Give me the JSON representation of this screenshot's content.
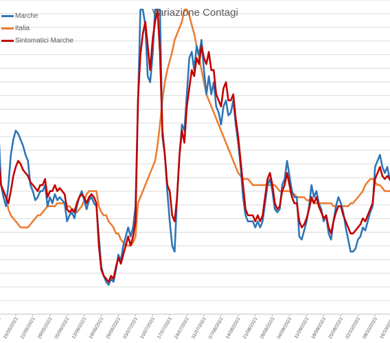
{
  "chart_data": {
    "type": "line",
    "title": "Variazione Contagi",
    "xlabel": "",
    "ylabel": "",
    "grid": true,
    "legend_position": "top-left",
    "x_tick_labels": [
      "08/05/2021",
      "15/05/2021",
      "22/05/2021",
      "29/05/2021",
      "05/06/2021",
      "12/06/2021",
      "19/06/2021",
      "26/06/2021",
      "03/07/2021",
      "10/07/2021",
      "17/07/2021",
      "24/07/2021",
      "31/07/2021",
      "07/08/2021",
      "14/08/2021",
      "21/08/2021",
      "28/08/2021",
      "04/09/2021",
      "11/09/2021",
      "18/09/2021",
      "25/09/2021",
      "02/10/2021",
      "09/10/2021",
      "16/10/2021"
    ],
    "x_start": "2021-05-08",
    "ylim": [
      0,
      100
    ],
    "series": [
      {
        "name": "Marche",
        "color": "#2E75B6",
        "values": [
          60,
          42,
          38,
          35,
          42,
          52,
          57,
          60,
          59,
          57,
          55,
          52,
          50,
          42,
          40,
          37,
          38,
          40,
          40,
          42,
          35,
          38,
          36,
          39,
          37,
          38,
          37,
          36,
          30,
          32,
          33,
          31,
          35,
          38,
          40,
          37,
          34,
          37,
          38,
          36,
          35,
          25,
          15,
          12,
          10,
          9,
          11,
          10,
          14,
          19,
          17,
          22,
          25,
          28,
          25,
          28,
          35,
          68,
          100,
          100,
          95,
          78,
          76,
          85,
          100,
          100,
          100,
          58,
          52,
          40,
          30,
          22,
          20,
          38,
          52,
          62,
          60,
          72,
          84,
          86,
          80,
          88,
          85,
          90,
          80,
          72,
          78,
          72,
          76,
          68,
          66,
          62,
          68,
          70,
          65,
          66,
          70,
          62,
          56,
          48,
          38,
          32,
          30,
          30,
          30,
          28,
          30,
          28,
          30,
          36,
          42,
          44,
          40,
          34,
          33,
          34,
          42,
          44,
          50,
          45,
          40,
          38,
          38,
          25,
          24,
          27,
          30,
          35,
          42,
          38,
          40,
          36,
          34,
          30,
          32,
          26,
          24,
          30,
          35,
          38,
          36,
          33,
          28,
          24,
          20,
          20,
          21,
          24,
          25,
          28,
          27,
          30,
          33,
          35,
          48,
          50,
          52,
          48,
          46,
          48,
          44,
          42
        ]
      },
      {
        "name": "Italia",
        "color": "#ED7D31",
        "values": [
          44,
          42,
          40,
          38,
          34,
          32,
          31,
          30,
          29,
          28,
          28,
          28,
          28,
          29,
          30,
          31,
          32,
          32,
          33,
          34,
          35,
          35,
          35,
          35,
          36,
          36,
          36,
          36,
          35,
          35,
          34,
          34,
          33,
          34,
          35,
          37,
          39,
          40,
          40,
          40,
          40,
          35,
          33,
          32,
          32,
          30,
          29,
          28,
          26,
          26,
          24,
          23,
          22,
          22,
          22,
          23,
          25,
          36,
          38,
          40,
          42,
          44,
          46,
          48,
          50,
          55,
          62,
          70,
          76,
          80,
          83,
          86,
          90,
          92,
          94,
          96,
          100,
          100,
          98,
          95,
          92,
          88,
          84,
          80,
          76,
          72,
          70,
          68,
          66,
          64,
          62,
          60,
          58,
          56,
          54,
          52,
          50,
          48,
          46,
          45,
          44,
          44,
          44,
          43,
          42,
          42,
          42,
          42,
          42,
          42,
          42,
          42,
          42,
          42,
          41,
          40,
          40,
          40,
          40,
          40,
          39,
          39,
          38,
          38,
          38,
          38,
          37,
          37,
          37,
          36,
          36,
          36,
          36,
          36,
          36,
          36,
          36,
          35,
          35,
          35,
          35,
          35,
          35,
          35,
          36,
          36,
          37,
          38,
          39,
          40,
          42,
          43,
          44,
          44,
          43,
          42,
          42,
          41,
          40,
          40,
          40,
          40
        ]
      },
      {
        "name": "Sintomatici Marche",
        "color": "#C00000",
        "values": [
          50,
          42,
          40,
          38,
          36,
          40,
          45,
          48,
          50,
          49,
          47,
          46,
          45,
          43,
          42,
          41,
          40,
          42,
          42,
          44,
          38,
          40,
          40,
          42,
          40,
          41,
          40,
          39,
          34,
          33,
          34,
          33,
          36,
          38,
          39,
          38,
          36,
          38,
          39,
          38,
          36,
          22,
          14,
          12,
          11,
          10,
          12,
          11,
          15,
          18,
          16,
          19,
          22,
          25,
          22,
          25,
          30,
          70,
          85,
          92,
          96,
          88,
          80,
          90,
          96,
          100,
          86,
          60,
          52,
          42,
          40,
          32,
          30,
          38,
          52,
          60,
          56,
          68,
          74,
          80,
          78,
          84,
          82,
          88,
          84,
          82,
          86,
          80,
          80,
          72,
          70,
          68,
          74,
          76,
          70,
          70,
          72,
          64,
          58,
          50,
          42,
          34,
          32,
          32,
          32,
          30,
          32,
          30,
          32,
          38,
          44,
          46,
          42,
          36,
          34,
          35,
          40,
          42,
          46,
          42,
          38,
          36,
          36,
          30,
          28,
          29,
          31,
          34,
          38,
          36,
          38,
          35,
          33,
          31,
          32,
          28,
          26,
          30,
          33,
          35,
          35,
          32,
          30,
          28,
          26,
          26,
          27,
          28,
          29,
          31,
          30,
          32,
          34,
          36,
          44,
          46,
          48,
          45,
          44,
          45,
          44,
          43
        ]
      }
    ]
  }
}
